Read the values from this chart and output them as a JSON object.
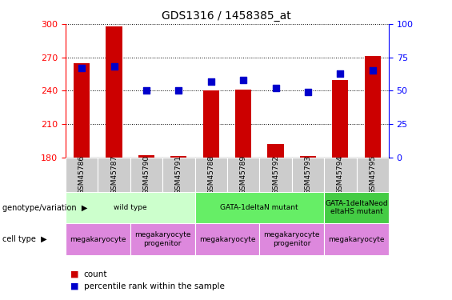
{
  "title": "GDS1316 / 1458385_at",
  "samples": [
    "GSM45786",
    "GSM45787",
    "GSM45790",
    "GSM45791",
    "GSM45788",
    "GSM45789",
    "GSM45792",
    "GSM45793",
    "GSM45794",
    "GSM45795"
  ],
  "counts": [
    265,
    298,
    182,
    181,
    240,
    241,
    192,
    181,
    250,
    271
  ],
  "percentiles": [
    67,
    68,
    50,
    50,
    57,
    58,
    52,
    49,
    63,
    65
  ],
  "ylim_left": [
    180,
    300
  ],
  "ylim_right": [
    0,
    100
  ],
  "yticks_left": [
    180,
    210,
    240,
    270,
    300
  ],
  "yticks_right": [
    0,
    25,
    50,
    75,
    100
  ],
  "bar_color": "#cc0000",
  "dot_color": "#0000cc",
  "bar_width": 0.5,
  "dot_size": 40,
  "genotype_groups": [
    {
      "label": "wild type",
      "start": 0,
      "end": 4,
      "color": "#ccffcc"
    },
    {
      "label": "GATA-1deltaN mutant",
      "start": 4,
      "end": 8,
      "color": "#66ee66"
    },
    {
      "label": "GATA-1deltaNeod\neltaHS mutant",
      "start": 8,
      "end": 10,
      "color": "#44cc44"
    }
  ],
  "cell_type_groups": [
    {
      "label": "megakaryocyte",
      "start": 0,
      "end": 2,
      "color": "#dd88dd"
    },
    {
      "label": "megakaryocyte\nprogenitor",
      "start": 2,
      "end": 4,
      "color": "#dd88dd"
    },
    {
      "label": "megakaryocyte",
      "start": 4,
      "end": 6,
      "color": "#dd88dd"
    },
    {
      "label": "megakaryocyte\nprogenitor",
      "start": 6,
      "end": 8,
      "color": "#dd88dd"
    },
    {
      "label": "megakaryocyte",
      "start": 8,
      "end": 10,
      "color": "#dd88dd"
    }
  ],
  "legend_count_color": "#cc0000",
  "legend_dot_color": "#0000cc",
  "genotype_label": "genotype/variation",
  "cell_type_label": "cell type",
  "sample_bg_color": "#cccccc"
}
